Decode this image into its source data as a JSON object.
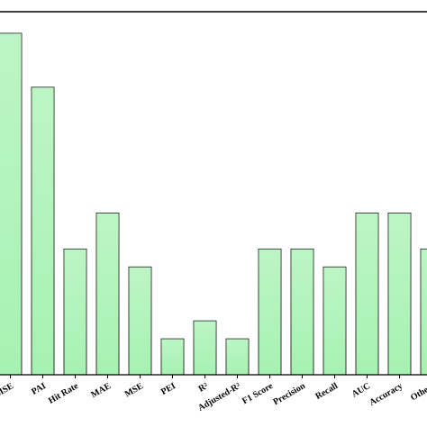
{
  "chart_data": {
    "type": "bar",
    "categories": [
      "RMSE",
      "PAI",
      "Hit Rate",
      "MAE",
      "MSE",
      "PEI",
      "R²",
      "Adjusted-R²",
      "F1 Score",
      "Precision",
      "Recall",
      "AUC",
      "Accuracy",
      "Others"
    ],
    "values": [
      19,
      16,
      7,
      9,
      6,
      2,
      3,
      2,
      7,
      7,
      6,
      9,
      9,
      7
    ],
    "color": "#a6f2b2",
    "ylim": [
      0,
      20.2
    ]
  }
}
